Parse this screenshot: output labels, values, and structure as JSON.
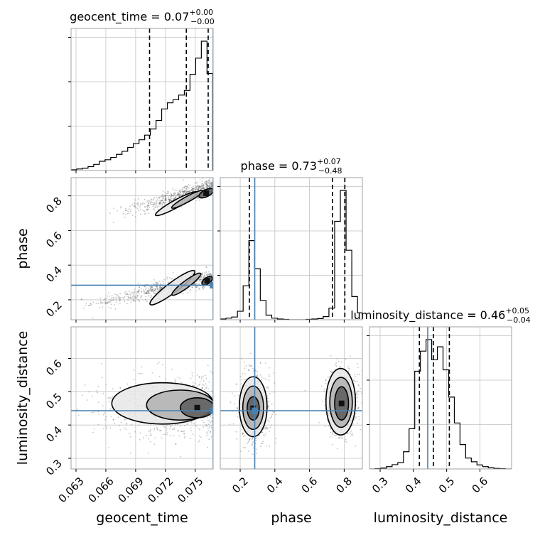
{
  "chart_data": {
    "type": "corner",
    "grid": true,
    "truth_color": "#4682b4",
    "contour_color": "#000000",
    "parameters": [
      "geocent_time",
      "phase",
      "luminosity_distance"
    ],
    "truths": {
      "geocent_time": 0.0768,
      "phase": 0.284,
      "luminosity_distance": 0.443
    },
    "titles": [
      {
        "param": "geocent_time",
        "label": "geocent_time",
        "median": "0.07",
        "plus": "+0.00",
        "minus": "−0.00"
      },
      {
        "param": "phase",
        "label": "phase",
        "median": "0.73",
        "plus": "+0.07",
        "minus": "−0.48"
      },
      {
        "param": "luminosity_distance",
        "label": "luminosity_distance",
        "median": "0.46",
        "plus": "+0.05",
        "minus": "−0.04"
      }
    ],
    "axes": {
      "geocent_time": {
        "label": "geocent_time",
        "range": [
          0.0625,
          0.0768
        ],
        "ticks": [
          0.063,
          0.066,
          0.069,
          0.072,
          0.075
        ],
        "tick_labels": [
          "0.063",
          "0.066",
          "0.069",
          "0.072",
          "0.075"
        ]
      },
      "phase": {
        "label": "phase",
        "range": [
          0.085,
          0.905
        ],
        "ticks": [
          0.2,
          0.4,
          0.6,
          0.8
        ],
        "tick_labels": [
          "0.2",
          "0.4",
          "0.6",
          "0.8"
        ]
      },
      "luminosity_distance": {
        "label": "luminosity_distance",
        "range": [
          0.268,
          0.695
        ],
        "ticks": [
          0.3,
          0.4,
          0.5,
          0.6
        ],
        "tick_labels": [
          "0.3",
          "0.4",
          "0.5",
          "0.6"
        ]
      }
    },
    "marginals": [
      {
        "param": "geocent_time",
        "bin_edges": [
          0.0625,
          0.06307,
          0.06364,
          0.06421,
          0.06478,
          0.06535,
          0.06592,
          0.06649,
          0.06706,
          0.06763,
          0.0682,
          0.06877,
          0.06934,
          0.06991,
          0.07048,
          0.07105,
          0.07162,
          0.07219,
          0.07276,
          0.07333,
          0.0739,
          0.07447,
          0.07504,
          0.07561,
          0.07618,
          0.07675
        ],
        "counts": [
          1,
          2,
          3,
          5,
          8,
          12,
          14,
          17,
          21,
          25,
          30,
          35,
          40,
          46,
          54,
          65,
          80,
          88,
          92,
          98,
          104,
          125,
          146,
          168,
          126
        ],
        "quantiles": [
          0.0704,
          0.0741,
          0.0763
        ]
      },
      {
        "param": "phase",
        "bin_edges": [
          0.085,
          0.118,
          0.151,
          0.184,
          0.217,
          0.25,
          0.283,
          0.316,
          0.349,
          0.382,
          0.415,
          0.448,
          0.481,
          0.514,
          0.547,
          0.58,
          0.613,
          0.646,
          0.679,
          0.712,
          0.745,
          0.778,
          0.811,
          0.844,
          0.877,
          0.905
        ],
        "counts": [
          2,
          4,
          7,
          22,
          88,
          205,
          132,
          50,
          12,
          4,
          2,
          1,
          0,
          0,
          0,
          1,
          2,
          3,
          8,
          30,
          255,
          335,
          180,
          60,
          18
        ],
        "quantiles": [
          0.253,
          0.732,
          0.804
        ]
      },
      {
        "param": "luminosity_distance",
        "bin_edges": [
          0.268,
          0.285,
          0.302,
          0.319,
          0.336,
          0.353,
          0.37,
          0.387,
          0.404,
          0.421,
          0.438,
          0.455,
          0.472,
          0.489,
          0.506,
          0.523,
          0.54,
          0.557,
          0.574,
          0.591,
          0.608,
          0.625,
          0.642,
          0.659,
          0.676,
          0.695
        ],
        "counts": [
          0,
          1,
          3,
          8,
          15,
          22,
          60,
          140,
          340,
          410,
          450,
          380,
          425,
          345,
          250,
          160,
          85,
          38,
          25,
          14,
          8,
          4,
          2,
          1,
          0
        ],
        "quantiles": [
          0.418,
          0.46,
          0.508
        ]
      }
    ],
    "pairs": [
      {
        "x": "geocent_time",
        "y": "phase",
        "modes": [
          {
            "x_from": 0.0665,
            "x_to": 0.0768,
            "y_from": 0.69,
            "y_to": 0.855,
            "spread": 0.022
          },
          {
            "x_from": 0.0628,
            "x_to": 0.0768,
            "y_from": 0.15,
            "y_to": 0.33,
            "spread": 0.022
          }
        ],
        "contours": [
          {
            "mode": 0,
            "level": 1,
            "cx": 0.0731,
            "cy": 0.755,
            "rx": 0.0024,
            "ry": 0.022,
            "tilt": 0.55
          },
          {
            "mode": 0,
            "level": 2,
            "cx": 0.0742,
            "cy": 0.78,
            "rx": 0.0018,
            "ry": 0.016,
            "tilt": 0.55
          },
          {
            "mode": 0,
            "level": 3,
            "cx": 0.0761,
            "cy": 0.815,
            "rx": 0.0008,
            "ry": 0.02,
            "tilt": 0.5
          },
          {
            "mode": 1,
            "level": 1,
            "cx": 0.0727,
            "cy": 0.27,
            "rx": 0.0028,
            "ry": 0.03,
            "tilt": 0.75
          },
          {
            "mode": 1,
            "level": 2,
            "cx": 0.0741,
            "cy": 0.29,
            "rx": 0.0018,
            "ry": 0.02,
            "tilt": 0.75
          },
          {
            "mode": 1,
            "level": 3,
            "cx": 0.0762,
            "cy": 0.31,
            "rx": 0.0006,
            "ry": 0.018,
            "tilt": 0.7
          }
        ]
      },
      {
        "x": "geocent_time",
        "y": "luminosity_distance",
        "modes": [
          {
            "x_from": 0.063,
            "x_to": 0.0768,
            "y_from": 0.44,
            "y_to": 0.46,
            "spread": 0.05
          }
        ],
        "contours": [
          {
            "mode": 0,
            "level": 1,
            "cx": 0.0717,
            "cy": 0.465,
            "rx": 0.0051,
            "ry": 0.062,
            "tilt": 0
          },
          {
            "mode": 0,
            "level": 2,
            "cx": 0.0735,
            "cy": 0.46,
            "rx": 0.0034,
            "ry": 0.045,
            "tilt": 0
          },
          {
            "mode": 0,
            "level": 3,
            "cx": 0.0752,
            "cy": 0.452,
            "rx": 0.0017,
            "ry": 0.03,
            "tilt": 0
          }
        ]
      },
      {
        "x": "phase",
        "y": "luminosity_distance",
        "modes": [
          {
            "x_from": 0.28,
            "x_to": 0.28,
            "y_from": 0.45,
            "y_to": 0.45,
            "spread": 0.05
          },
          {
            "x_from": 0.79,
            "x_to": 0.79,
            "y_from": 0.465,
            "y_to": 0.465,
            "spread": 0.05
          }
        ],
        "contours": [
          {
            "mode": 0,
            "level": 1,
            "cx": 0.275,
            "cy": 0.455,
            "rx": 0.08,
            "ry": 0.09,
            "tilt": 0
          },
          {
            "mode": 0,
            "level": 2,
            "cx": 0.275,
            "cy": 0.452,
            "rx": 0.06,
            "ry": 0.065,
            "tilt": 0
          },
          {
            "mode": 0,
            "level": 3,
            "cx": 0.275,
            "cy": 0.45,
            "rx": 0.035,
            "ry": 0.035,
            "tilt": 0
          },
          {
            "mode": 1,
            "level": 1,
            "cx": 0.78,
            "cy": 0.47,
            "rx": 0.085,
            "ry": 0.1,
            "tilt": 0
          },
          {
            "mode": 1,
            "level": 2,
            "cx": 0.782,
            "cy": 0.468,
            "rx": 0.065,
            "ry": 0.075,
            "tilt": 0
          },
          {
            "mode": 1,
            "level": 3,
            "cx": 0.785,
            "cy": 0.465,
            "rx": 0.04,
            "ry": 0.05,
            "tilt": 0
          }
        ]
      }
    ]
  }
}
